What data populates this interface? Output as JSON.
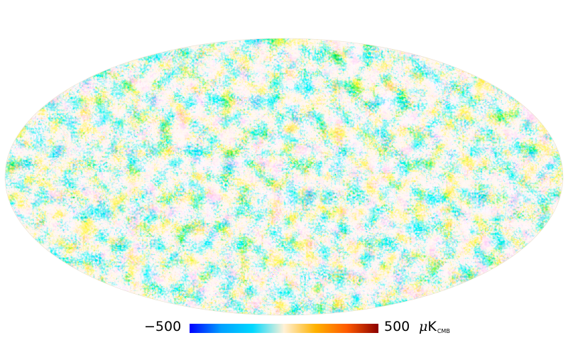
{
  "map": {
    "projection": "mollweide",
    "title": ""
  },
  "colorbar": {
    "min_label": "−500",
    "max_label": "500",
    "unit_symbol": "μ",
    "unit_letter": "K",
    "unit_subscript": "CMB",
    "min_value": -500,
    "max_value": 500,
    "colormap": [
      "#0000ff",
      "#00a0ff",
      "#00d8ff",
      "#fff1d7",
      "#ffb200",
      "#ff5a00",
      "#8b0000"
    ]
  },
  "colors": {
    "background": "#ffffff",
    "text": "#000000"
  }
}
